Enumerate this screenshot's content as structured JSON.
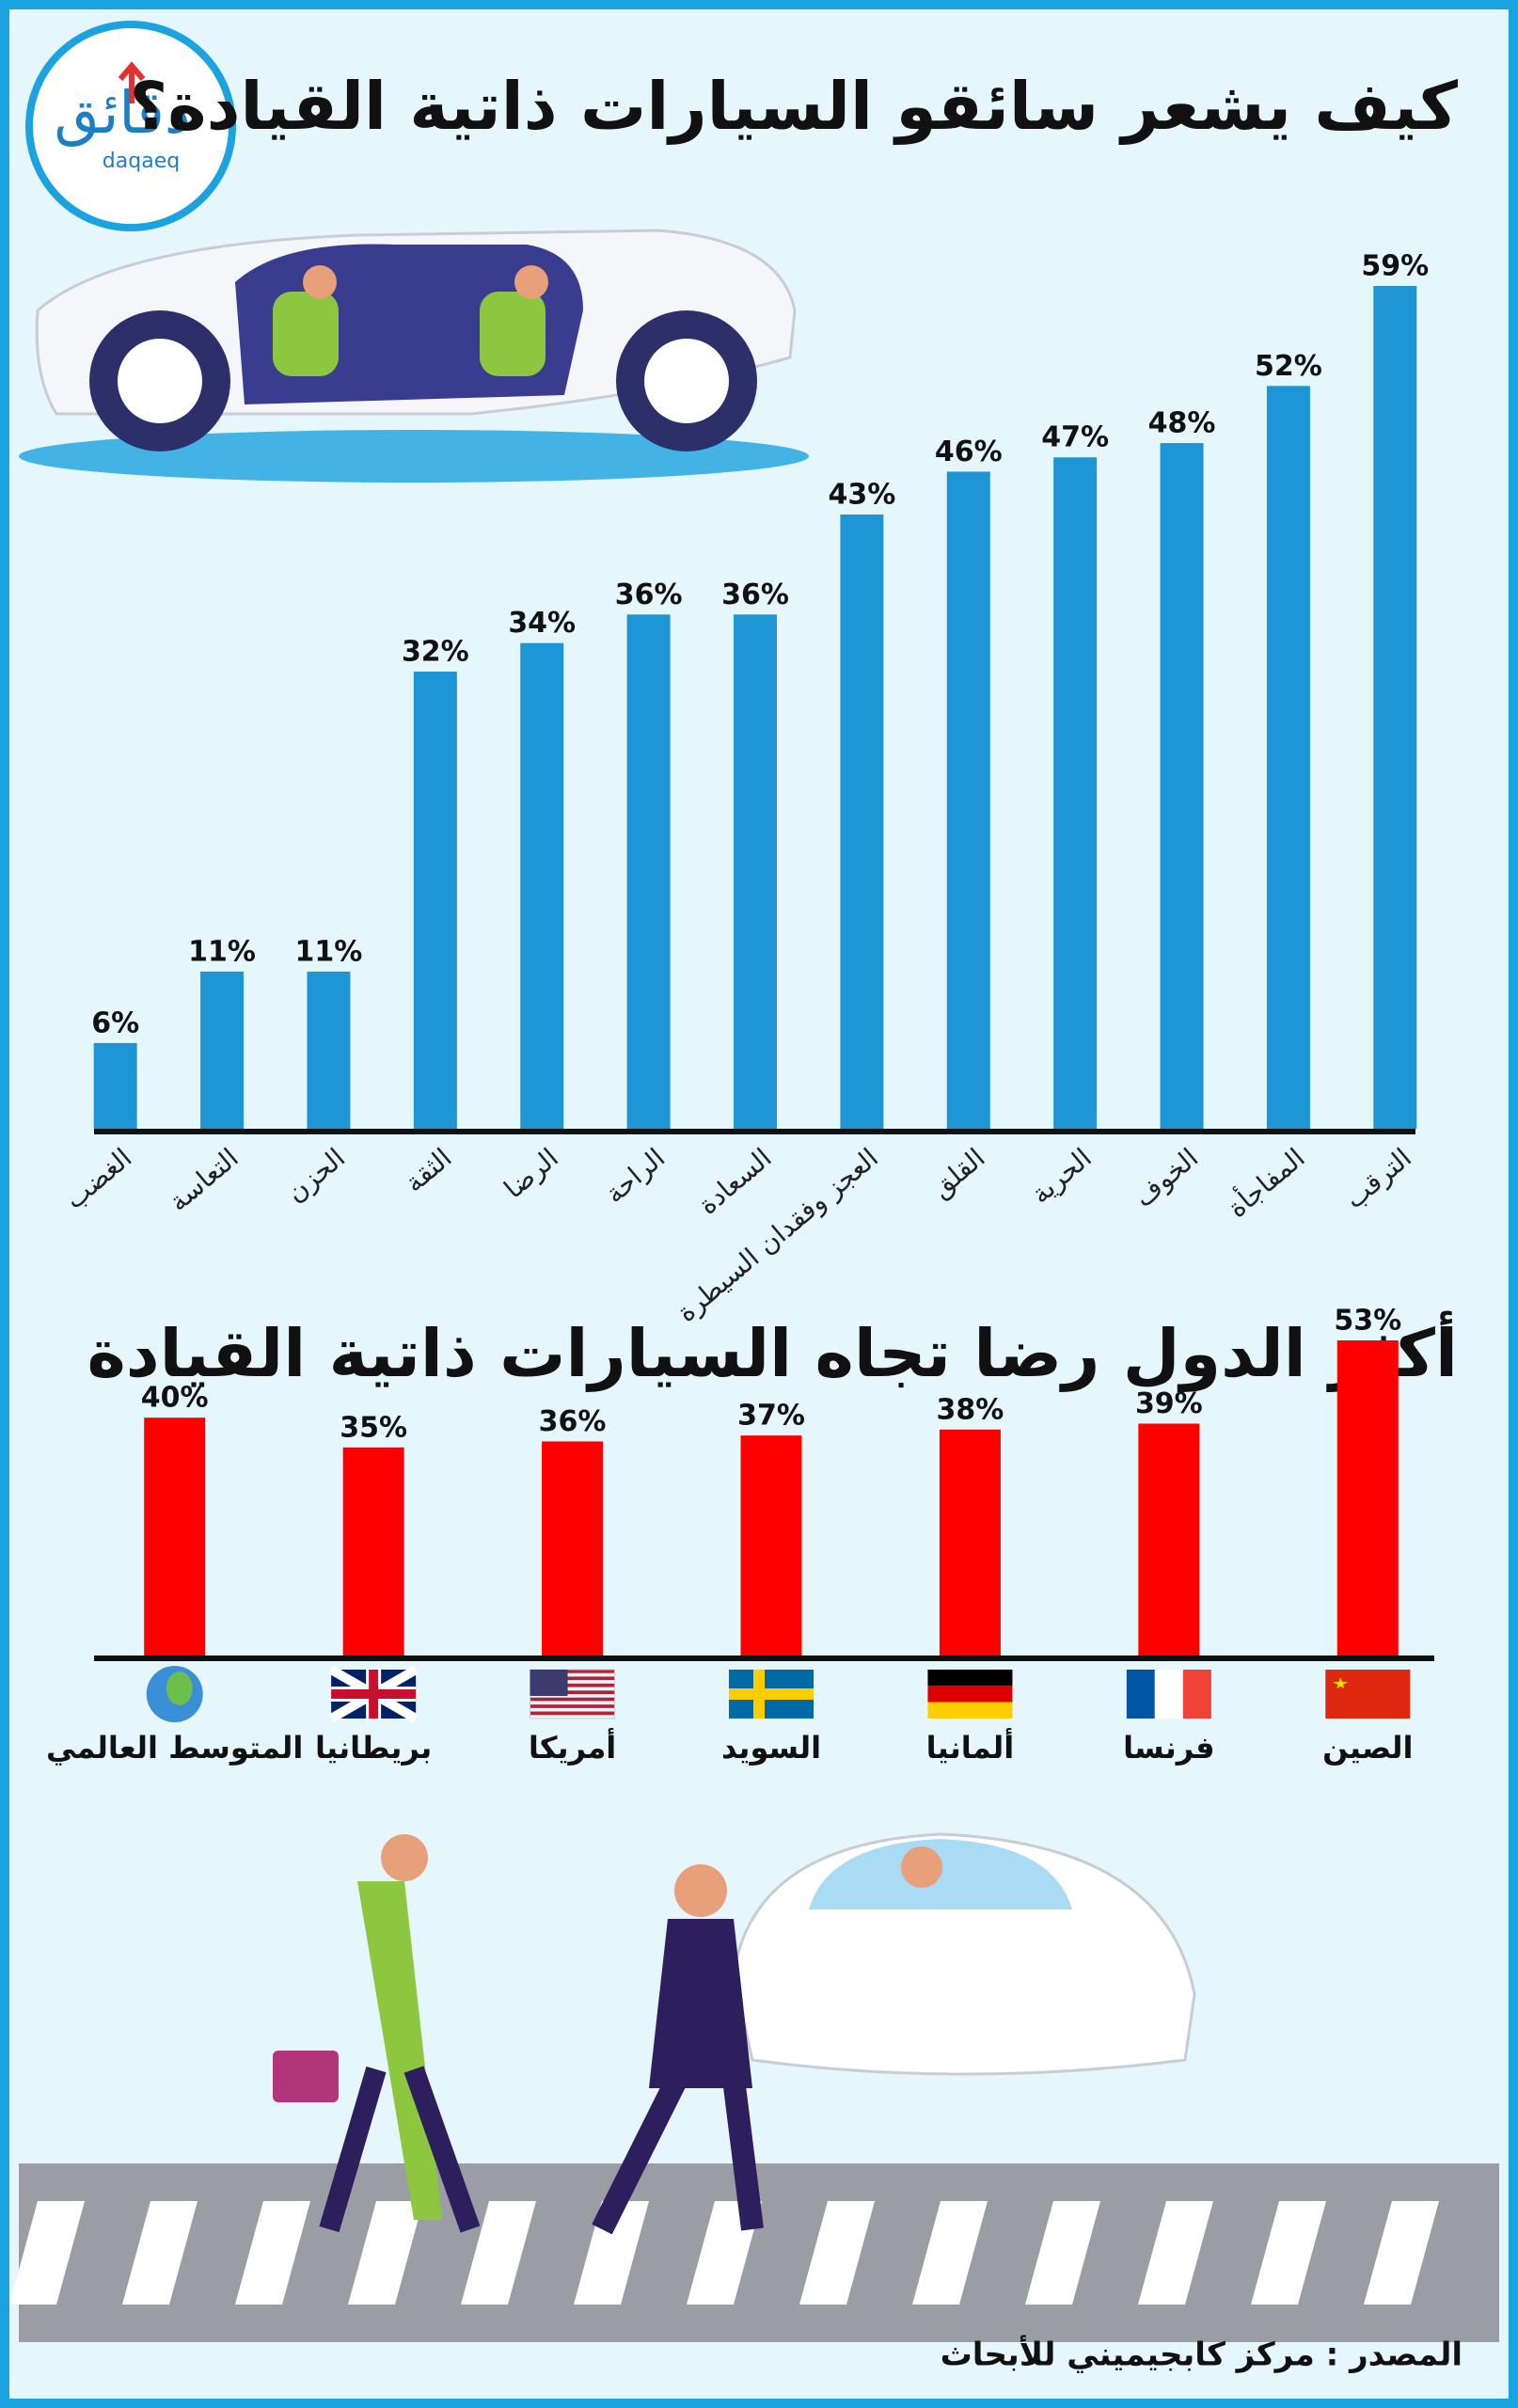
{
  "logo": {
    "name": "دقائق",
    "latin": "daqaeq"
  },
  "source": "المصدر : مركز كابجيميني للأبحاث",
  "chart_data": [
    {
      "type": "bar",
      "title": "كيف يشعر سائقو السيارات ذاتية القيادة؟",
      "categories": [
        "الغضب",
        "التعاسة",
        "الحزن",
        "الثقة",
        "الرضا",
        "الراحة",
        "السعادة",
        "العجز وفقدان السيطرة",
        "القلق",
        "الحرية",
        "الخوف",
        "المفاجأة",
        "الترقب"
      ],
      "values": [
        6,
        11,
        11,
        32,
        34,
        36,
        36,
        43,
        46,
        47,
        48,
        52,
        59
      ],
      "value_labels": [
        "6%",
        "11%",
        "11%",
        "32%",
        "34%",
        "36%",
        "36%",
        "43%",
        "46%",
        "47%",
        "48%",
        "52%",
        "59%"
      ],
      "color": "#1e96d6"
    },
    {
      "type": "bar",
      "title": "أكثر الدول رضا تجاه السيارات ذاتية القيادة",
      "categories": [
        "المتوسط العالمي",
        "بريطانيا",
        "أمريكا",
        "السويد",
        "ألمانيا",
        "فرنسا",
        "الصين"
      ],
      "values": [
        40,
        35,
        36,
        37,
        38,
        39,
        53
      ],
      "value_labels": [
        "40%",
        "35%",
        "36%",
        "37%",
        "38%",
        "39%",
        "53%"
      ],
      "color": "#ff0000"
    }
  ]
}
